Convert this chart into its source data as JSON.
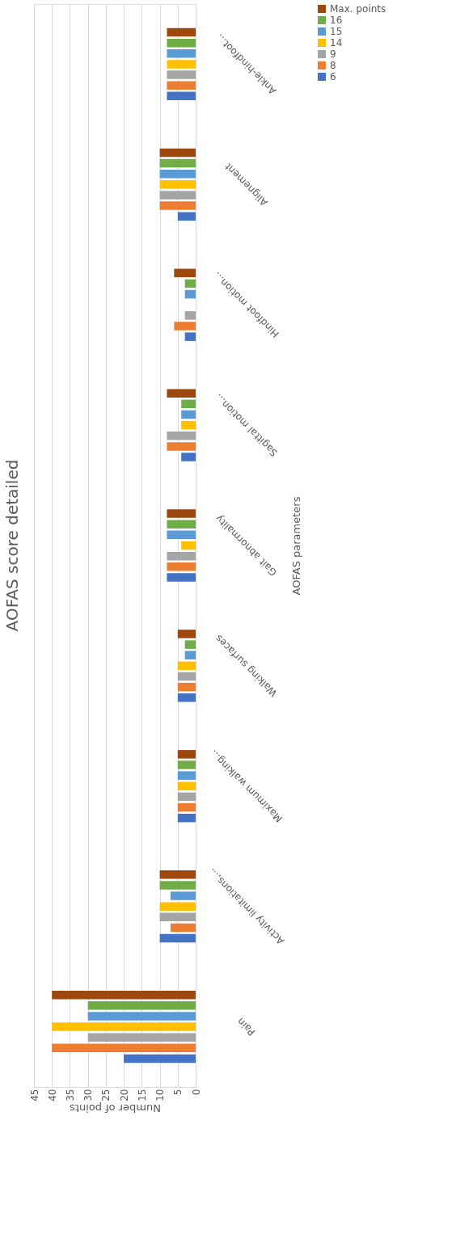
{
  "chart_data": {
    "type": "bar",
    "orientation": "horizontal",
    "title": "AOFAS score detailed",
    "xlabel": "Number of points",
    "ylabel": "AOFAS parameters",
    "categories": [
      "Ankle-hindfoot...",
      "Alignement",
      "Hindfoot motion...",
      "Sagittal motion...",
      "Gait abnormality",
      "Walking surfaces",
      "Maximum walking...",
      "Activity limitations,...",
      "Pain"
    ],
    "series": [
      {
        "name": "Max. points",
        "color": "#9e480e",
        "values": [
          8,
          10,
          6,
          8,
          8,
          5,
          5,
          10,
          40
        ]
      },
      {
        "name": "16",
        "color": "#70ad47",
        "values": [
          8,
          10,
          3,
          4,
          8,
          3,
          5,
          10,
          30
        ]
      },
      {
        "name": "15",
        "color": "#5b9bd5",
        "values": [
          8,
          10,
          3,
          4,
          8,
          3,
          5,
          7,
          30
        ]
      },
      {
        "name": "14",
        "color": "#ffc000",
        "values": [
          8,
          10,
          0,
          4,
          4,
          5,
          5,
          10,
          40
        ]
      },
      {
        "name": "9",
        "color": "#a5a5a5",
        "values": [
          8,
          10,
          3,
          8,
          8,
          5,
          5,
          10,
          30
        ]
      },
      {
        "name": "8",
        "color": "#ed7d31",
        "values": [
          8,
          10,
          6,
          8,
          8,
          5,
          5,
          7,
          40
        ]
      },
      {
        "name": "6",
        "color": "#4472c4",
        "values": [
          8,
          5,
          3,
          4,
          8,
          5,
          5,
          10,
          20
        ]
      }
    ],
    "xlim": [
      45,
      0
    ],
    "xticks": [
      0,
      5,
      10,
      15,
      20,
      25,
      30,
      35,
      40,
      45
    ],
    "grid": "x",
    "legend": "right"
  }
}
